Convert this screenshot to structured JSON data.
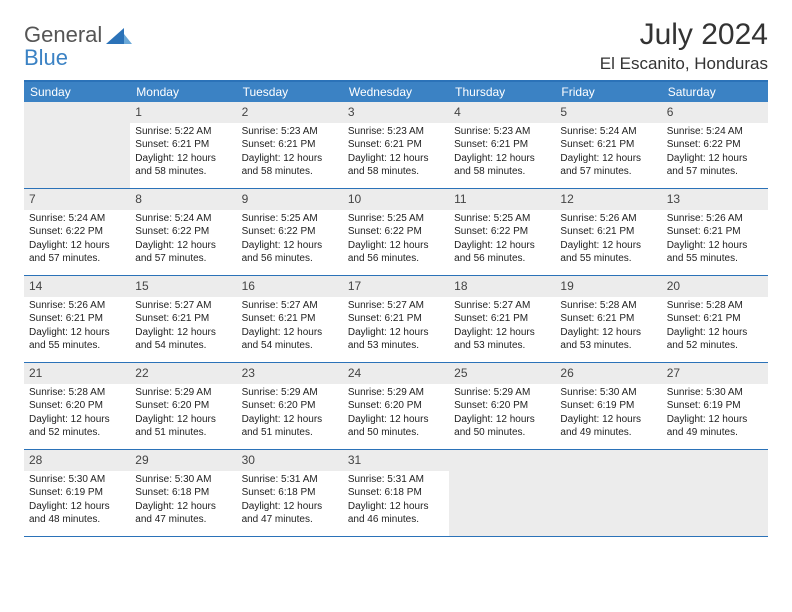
{
  "brand": {
    "part1": "General",
    "part2": "Blue"
  },
  "title": "July 2024",
  "location": "El Escanito, Honduras",
  "colors": {
    "header_bg": "#3b82c4",
    "header_border": "#2b72b8",
    "empty_bg": "#ececec",
    "brand_gray": "#555555",
    "brand_blue": "#3b82c4"
  },
  "typography": {
    "title_fontsize": 30,
    "weekday_fontsize": 12,
    "body_fontsize": 10
  },
  "weekdays": [
    "Sunday",
    "Monday",
    "Tuesday",
    "Wednesday",
    "Thursday",
    "Friday",
    "Saturday"
  ],
  "weeks": [
    [
      null,
      {
        "n": "1",
        "sunrise": "5:22 AM",
        "sunset": "6:21 PM",
        "daylight": "12 hours and 58 minutes."
      },
      {
        "n": "2",
        "sunrise": "5:23 AM",
        "sunset": "6:21 PM",
        "daylight": "12 hours and 58 minutes."
      },
      {
        "n": "3",
        "sunrise": "5:23 AM",
        "sunset": "6:21 PM",
        "daylight": "12 hours and 58 minutes."
      },
      {
        "n": "4",
        "sunrise": "5:23 AM",
        "sunset": "6:21 PM",
        "daylight": "12 hours and 58 minutes."
      },
      {
        "n": "5",
        "sunrise": "5:24 AM",
        "sunset": "6:21 PM",
        "daylight": "12 hours and 57 minutes."
      },
      {
        "n": "6",
        "sunrise": "5:24 AM",
        "sunset": "6:22 PM",
        "daylight": "12 hours and 57 minutes."
      }
    ],
    [
      {
        "n": "7",
        "sunrise": "5:24 AM",
        "sunset": "6:22 PM",
        "daylight": "12 hours and 57 minutes."
      },
      {
        "n": "8",
        "sunrise": "5:24 AM",
        "sunset": "6:22 PM",
        "daylight": "12 hours and 57 minutes."
      },
      {
        "n": "9",
        "sunrise": "5:25 AM",
        "sunset": "6:22 PM",
        "daylight": "12 hours and 56 minutes."
      },
      {
        "n": "10",
        "sunrise": "5:25 AM",
        "sunset": "6:22 PM",
        "daylight": "12 hours and 56 minutes."
      },
      {
        "n": "11",
        "sunrise": "5:25 AM",
        "sunset": "6:22 PM",
        "daylight": "12 hours and 56 minutes."
      },
      {
        "n": "12",
        "sunrise": "5:26 AM",
        "sunset": "6:21 PM",
        "daylight": "12 hours and 55 minutes."
      },
      {
        "n": "13",
        "sunrise": "5:26 AM",
        "sunset": "6:21 PM",
        "daylight": "12 hours and 55 minutes."
      }
    ],
    [
      {
        "n": "14",
        "sunrise": "5:26 AM",
        "sunset": "6:21 PM",
        "daylight": "12 hours and 55 minutes."
      },
      {
        "n": "15",
        "sunrise": "5:27 AM",
        "sunset": "6:21 PM",
        "daylight": "12 hours and 54 minutes."
      },
      {
        "n": "16",
        "sunrise": "5:27 AM",
        "sunset": "6:21 PM",
        "daylight": "12 hours and 54 minutes."
      },
      {
        "n": "17",
        "sunrise": "5:27 AM",
        "sunset": "6:21 PM",
        "daylight": "12 hours and 53 minutes."
      },
      {
        "n": "18",
        "sunrise": "5:27 AM",
        "sunset": "6:21 PM",
        "daylight": "12 hours and 53 minutes."
      },
      {
        "n": "19",
        "sunrise": "5:28 AM",
        "sunset": "6:21 PM",
        "daylight": "12 hours and 53 minutes."
      },
      {
        "n": "20",
        "sunrise": "5:28 AM",
        "sunset": "6:21 PM",
        "daylight": "12 hours and 52 minutes."
      }
    ],
    [
      {
        "n": "21",
        "sunrise": "5:28 AM",
        "sunset": "6:20 PM",
        "daylight": "12 hours and 52 minutes."
      },
      {
        "n": "22",
        "sunrise": "5:29 AM",
        "sunset": "6:20 PM",
        "daylight": "12 hours and 51 minutes."
      },
      {
        "n": "23",
        "sunrise": "5:29 AM",
        "sunset": "6:20 PM",
        "daylight": "12 hours and 51 minutes."
      },
      {
        "n": "24",
        "sunrise": "5:29 AM",
        "sunset": "6:20 PM",
        "daylight": "12 hours and 50 minutes."
      },
      {
        "n": "25",
        "sunrise": "5:29 AM",
        "sunset": "6:20 PM",
        "daylight": "12 hours and 50 minutes."
      },
      {
        "n": "26",
        "sunrise": "5:30 AM",
        "sunset": "6:19 PM",
        "daylight": "12 hours and 49 minutes."
      },
      {
        "n": "27",
        "sunrise": "5:30 AM",
        "sunset": "6:19 PM",
        "daylight": "12 hours and 49 minutes."
      }
    ],
    [
      {
        "n": "28",
        "sunrise": "5:30 AM",
        "sunset": "6:19 PM",
        "daylight": "12 hours and 48 minutes."
      },
      {
        "n": "29",
        "sunrise": "5:30 AM",
        "sunset": "6:18 PM",
        "daylight": "12 hours and 47 minutes."
      },
      {
        "n": "30",
        "sunrise": "5:31 AM",
        "sunset": "6:18 PM",
        "daylight": "12 hours and 47 minutes."
      },
      {
        "n": "31",
        "sunrise": "5:31 AM",
        "sunset": "6:18 PM",
        "daylight": "12 hours and 46 minutes."
      },
      null,
      null,
      null
    ]
  ],
  "labels": {
    "sunrise": "Sunrise:",
    "sunset": "Sunset:",
    "daylight": "Daylight:"
  }
}
